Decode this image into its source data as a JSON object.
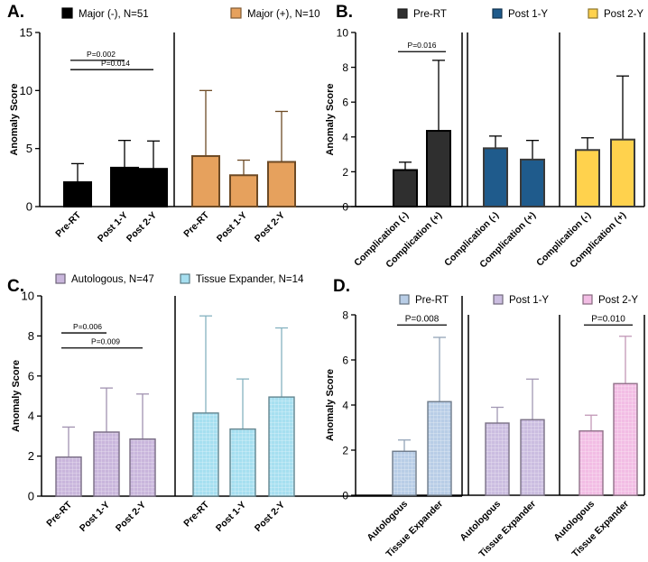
{
  "chart_data": [
    {
      "id": "A",
      "type": "bar",
      "panel_label": "A.",
      "ylabel": "Anomaly Score",
      "ylim": [
        0,
        15
      ],
      "yticks": [
        0,
        5,
        10,
        15
      ],
      "groups": [
        {
          "legend": "Major (-), N=51",
          "color": "#000000",
          "categories": [
            "Pre-RT",
            "Post 1-Y",
            "Post 2-Y"
          ],
          "values": [
            2.1,
            3.35,
            3.25
          ],
          "errors": [
            3.7,
            5.7,
            5.65
          ]
        },
        {
          "legend": "Major (+), N=10",
          "color": "#e6a15d",
          "categories": [
            "Pre-RT",
            "Post 1-Y",
            "Post 2-Y"
          ],
          "values": [
            4.35,
            2.7,
            3.85
          ],
          "errors": [
            10.0,
            4.0,
            8.2
          ]
        }
      ],
      "significance": [
        {
          "label": "P=0.002",
          "from": [
            0,
            0
          ],
          "to": [
            0,
            1
          ],
          "y": 12.6
        },
        {
          "label": "P=0.014",
          "from": [
            0,
            0
          ],
          "to": [
            0,
            2
          ],
          "y": 11.8
        }
      ]
    },
    {
      "id": "B",
      "type": "bar",
      "panel_label": "B.",
      "ylabel": "Anomaly Score",
      "ylim": [
        0,
        10
      ],
      "yticks": [
        0,
        2,
        4,
        6,
        8,
        10
      ],
      "groups": [
        {
          "legend": "Pre-RT",
          "color": "#2f2f2f",
          "categories": [
            "Complication (-)",
            "Complication (+)"
          ],
          "values": [
            2.1,
            4.35
          ],
          "errors": [
            2.55,
            8.4
          ]
        },
        {
          "legend": "Post 1-Y",
          "color": "#1f5b8c",
          "categories": [
            "Complication (-)",
            "Complication (+)"
          ],
          "values": [
            3.35,
            2.7
          ],
          "errors": [
            4.05,
            3.8
          ]
        },
        {
          "legend": "Post 2-Y",
          "color": "#ffd24d",
          "categories": [
            "Complication (-)",
            "Complication (+)"
          ],
          "values": [
            3.25,
            3.85
          ],
          "errors": [
            3.95,
            7.5
          ]
        }
      ],
      "significance": [
        {
          "label": "P=0.016",
          "from": [
            0,
            0
          ],
          "to": [
            0,
            1
          ],
          "y": 8.9
        }
      ]
    },
    {
      "id": "C",
      "type": "bar",
      "panel_label": "C.",
      "ylabel": "Anomaly Score",
      "ylim": [
        0,
        10
      ],
      "yticks": [
        0,
        2,
        4,
        6,
        8,
        10
      ],
      "groups": [
        {
          "legend": "Autologous, N=47",
          "color": "#c9b6dc",
          "categories": [
            "Pre-RT",
            "Post 1-Y",
            "Post 2-Y"
          ],
          "values": [
            1.95,
            3.2,
            2.85
          ],
          "errors": [
            3.45,
            5.4,
            5.1
          ]
        },
        {
          "legend": "Tissue Expander, N=14",
          "color": "#a6dff0",
          "categories": [
            "Pre-RT",
            "Post 1-Y",
            "Post 2-Y"
          ],
          "values": [
            4.15,
            3.35,
            4.95
          ],
          "errors": [
            9.0,
            5.85,
            8.4
          ]
        }
      ],
      "significance": [
        {
          "label": "P=0.006",
          "from": [
            0,
            0
          ],
          "to": [
            0,
            1
          ],
          "y": 8.15
        },
        {
          "label": "P=0.009",
          "from": [
            0,
            0
          ],
          "to": [
            0,
            2
          ],
          "y": 7.4
        }
      ]
    },
    {
      "id": "D",
      "type": "bar",
      "panel_label": "D.",
      "ylabel": "Anomaly Score",
      "ylim": [
        0,
        8
      ],
      "yticks": [
        0,
        2,
        4,
        6,
        8
      ],
      "groups": [
        {
          "legend": "Pre-RT",
          "color": "#b8cde6",
          "categories": [
            "Autologous",
            "Tissue Expander"
          ],
          "values": [
            1.95,
            4.15
          ],
          "errors": [
            2.45,
            7.0
          ]
        },
        {
          "legend": "Post 1-Y",
          "color": "#cbbde0",
          "categories": [
            "Autologous",
            "Tissue Expander"
          ],
          "values": [
            3.2,
            3.35
          ],
          "errors": [
            3.9,
            5.15
          ]
        },
        {
          "legend": "Post 2-Y",
          "color": "#f2bde4",
          "categories": [
            "Autologous",
            "Tissue Expander"
          ],
          "values": [
            2.85,
            4.95
          ],
          "errors": [
            3.55,
            7.05
          ]
        }
      ],
      "significance": [
        {
          "label": "P=0.008",
          "from": [
            0,
            0
          ],
          "to": [
            0,
            1
          ],
          "y": 7.55
        },
        {
          "label": "P=0.010",
          "from": [
            2,
            0
          ],
          "to": [
            2,
            1
          ],
          "y": 7.55
        }
      ]
    }
  ]
}
